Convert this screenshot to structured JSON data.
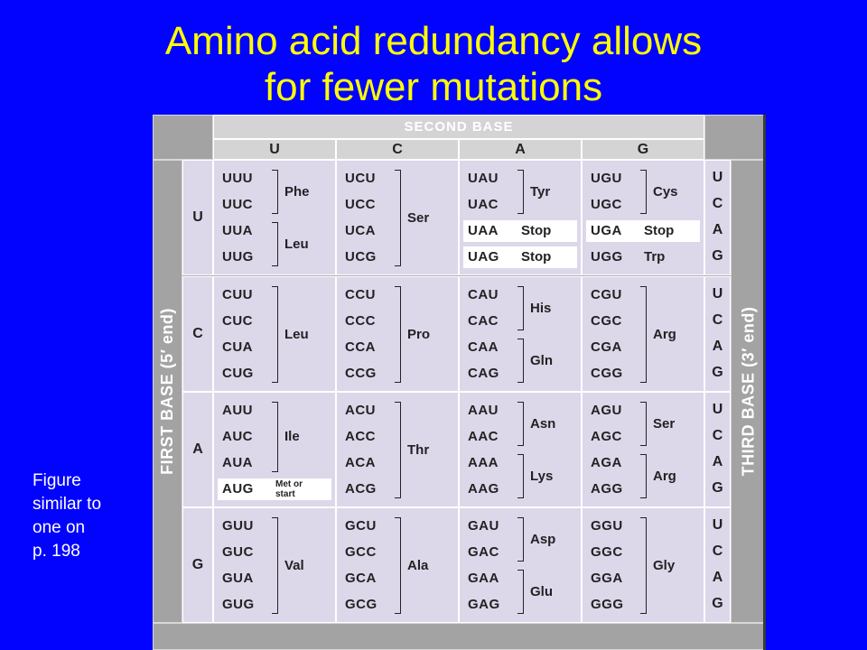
{
  "title": {
    "line1": "Amino acid redundancy allows",
    "line2": "for fewer mutations"
  },
  "note": {
    "lines": [
      "Figure",
      "similar to",
      "one on",
      "p. 198"
    ]
  },
  "table": {
    "second_base_label": "SECOND BASE",
    "first_base_label": "FIRST BASE (5′ end)",
    "third_base_label": "THIRD BASE (3′ end)",
    "bases": [
      "U",
      "C",
      "A",
      "G"
    ],
    "third_bases": [
      "U",
      "C",
      "A",
      "G"
    ],
    "blocks": [
      [
        {
          "codons": [
            "UUU",
            "UUC",
            "UUA",
            "UUG"
          ],
          "groups": [
            {
              "rows": [
                0,
                1
              ],
              "label": "Phe"
            },
            {
              "rows": [
                2,
                3
              ],
              "label": "Leu"
            }
          ],
          "highlight": []
        },
        {
          "codons": [
            "UCU",
            "UCC",
            "UCA",
            "UCG"
          ],
          "groups": [
            {
              "rows": [
                0,
                3
              ],
              "label": "Ser"
            }
          ],
          "highlight": []
        },
        {
          "codons": [
            "UAU",
            "UAC",
            "UAA",
            "UAG"
          ],
          "groups": [
            {
              "rows": [
                0,
                1
              ],
              "label": "Tyr"
            },
            {
              "rows": [
                2,
                2
              ],
              "label": "Stop"
            },
            {
              "rows": [
                3,
                3
              ],
              "label": "Stop"
            }
          ],
          "highlight": [
            2,
            3
          ]
        },
        {
          "codons": [
            "UGU",
            "UGC",
            "UGA",
            "UGG"
          ],
          "groups": [
            {
              "rows": [
                0,
                1
              ],
              "label": "Cys"
            },
            {
              "rows": [
                2,
                2
              ],
              "label": "Stop"
            },
            {
              "rows": [
                3,
                3
              ],
              "label": "Trp"
            }
          ],
          "highlight": [
            2
          ]
        }
      ],
      [
        {
          "codons": [
            "CUU",
            "CUC",
            "CUA",
            "CUG"
          ],
          "groups": [
            {
              "rows": [
                0,
                3
              ],
              "label": "Leu"
            }
          ],
          "highlight": []
        },
        {
          "codons": [
            "CCU",
            "CCC",
            "CCA",
            "CCG"
          ],
          "groups": [
            {
              "rows": [
                0,
                3
              ],
              "label": "Pro"
            }
          ],
          "highlight": []
        },
        {
          "codons": [
            "CAU",
            "CAC",
            "CAA",
            "CAG"
          ],
          "groups": [
            {
              "rows": [
                0,
                1
              ],
              "label": "His"
            },
            {
              "rows": [
                2,
                3
              ],
              "label": "Gln"
            }
          ],
          "highlight": []
        },
        {
          "codons": [
            "CGU",
            "CGC",
            "CGA",
            "CGG"
          ],
          "groups": [
            {
              "rows": [
                0,
                3
              ],
              "label": "Arg"
            }
          ],
          "highlight": []
        }
      ],
      [
        {
          "codons": [
            "AUU",
            "AUC",
            "AUA",
            "AUG"
          ],
          "groups": [
            {
              "rows": [
                0,
                2
              ],
              "label": "Ile"
            },
            {
              "rows": [
                3,
                3
              ],
              "label": "Met or start"
            }
          ],
          "highlight": [
            3
          ]
        },
        {
          "codons": [
            "ACU",
            "ACC",
            "ACA",
            "ACG"
          ],
          "groups": [
            {
              "rows": [
                0,
                3
              ],
              "label": "Thr"
            }
          ],
          "highlight": []
        },
        {
          "codons": [
            "AAU",
            "AAC",
            "AAA",
            "AAG"
          ],
          "groups": [
            {
              "rows": [
                0,
                1
              ],
              "label": "Asn"
            },
            {
              "rows": [
                2,
                3
              ],
              "label": "Lys"
            }
          ],
          "highlight": []
        },
        {
          "codons": [
            "AGU",
            "AGC",
            "AGA",
            "AGG"
          ],
          "groups": [
            {
              "rows": [
                0,
                1
              ],
              "label": "Ser"
            },
            {
              "rows": [
                2,
                3
              ],
              "label": "Arg"
            }
          ],
          "highlight": []
        }
      ],
      [
        {
          "codons": [
            "GUU",
            "GUC",
            "GUA",
            "GUG"
          ],
          "groups": [
            {
              "rows": [
                0,
                3
              ],
              "label": "Val"
            }
          ],
          "highlight": []
        },
        {
          "codons": [
            "GCU",
            "GCC",
            "GCA",
            "GCG"
          ],
          "groups": [
            {
              "rows": [
                0,
                3
              ],
              "label": "Ala"
            }
          ],
          "highlight": []
        },
        {
          "codons": [
            "GAU",
            "GAC",
            "GAA",
            "GAG"
          ],
          "groups": [
            {
              "rows": [
                0,
                1
              ],
              "label": "Asp"
            },
            {
              "rows": [
                2,
                3
              ],
              "label": "Glu"
            }
          ],
          "highlight": []
        },
        {
          "codons": [
            "GGU",
            "GGC",
            "GGA",
            "GGG"
          ],
          "groups": [
            {
              "rows": [
                0,
                3
              ],
              "label": "Gly"
            }
          ],
          "highlight": []
        }
      ]
    ]
  },
  "colors": {
    "background": "#0202ff",
    "title": "#ffff00",
    "note": "#ffffff",
    "cell": "#ddd7ea",
    "header": "#d4d4d4",
    "frame": "#a3a3a3"
  }
}
